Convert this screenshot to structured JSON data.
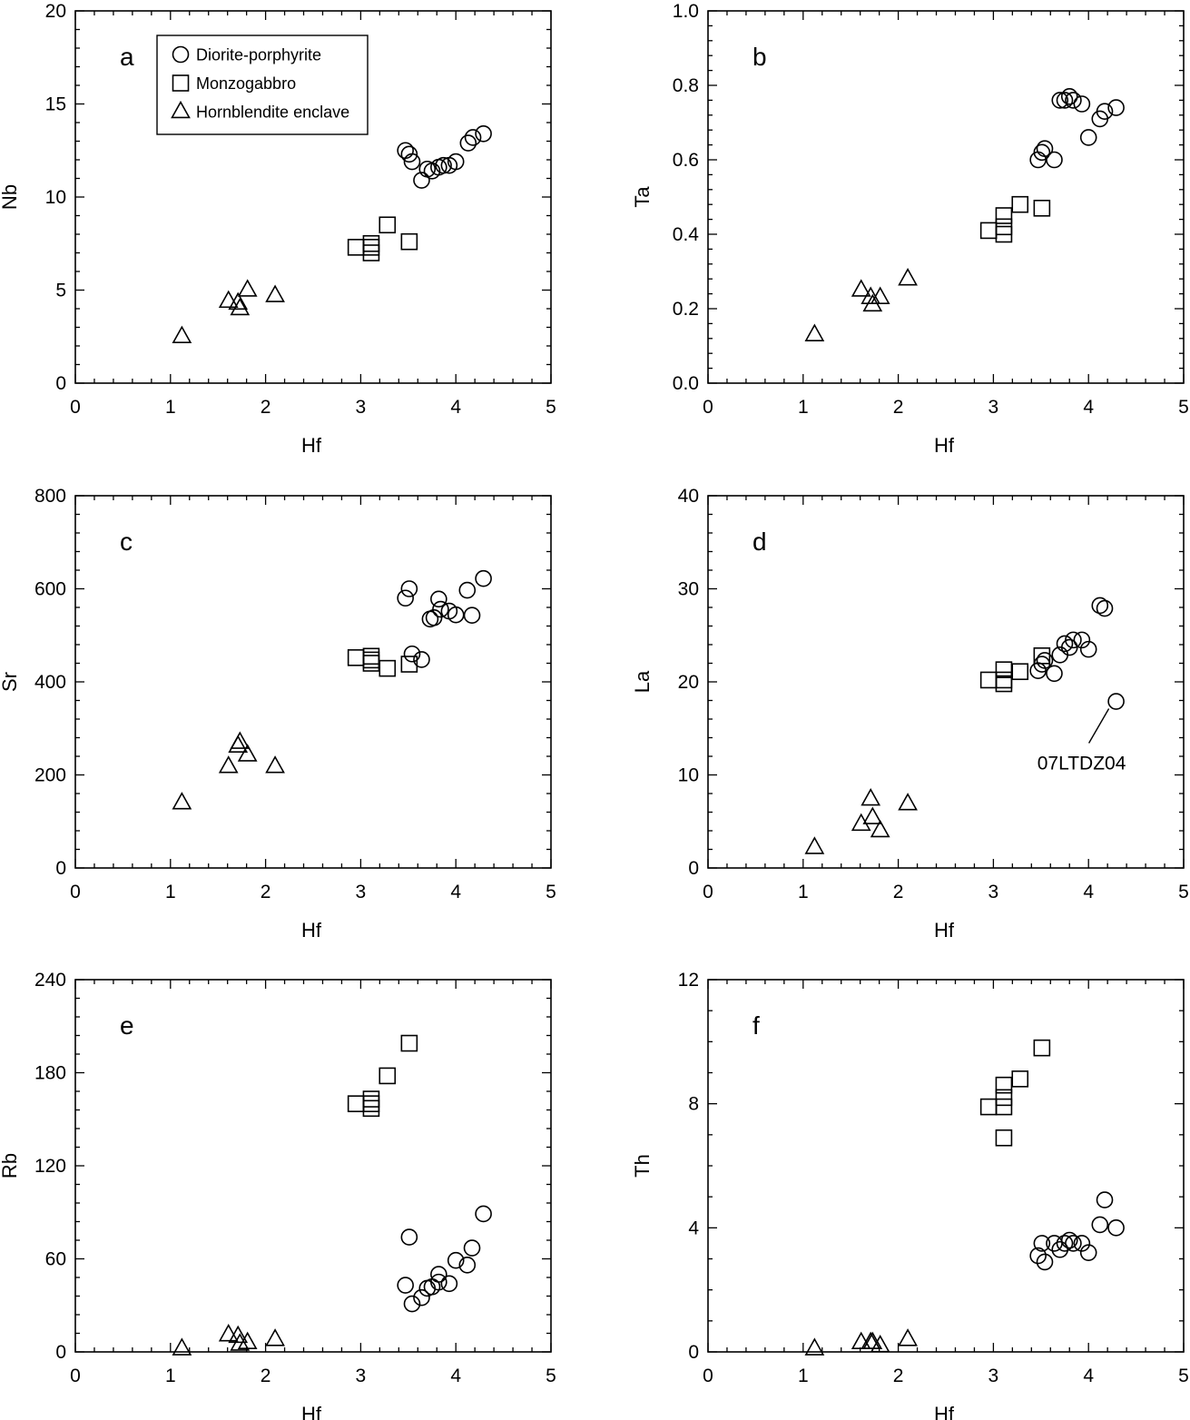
{
  "chart_data": [
    {
      "panel": "a",
      "type": "scatter",
      "xlabel": "Hf",
      "ylabel": "Nb",
      "xlim": [
        0,
        5
      ],
      "ylim": [
        0,
        20
      ],
      "xticks": [
        "0",
        "1",
        "2",
        "3",
        "4",
        "5"
      ],
      "yticks": [
        "0",
        "5",
        "10",
        "15",
        "20"
      ],
      "legend": {
        "placement": "top-left",
        "entries": [
          {
            "marker": "circle",
            "label": "Diorite-porphyrite"
          },
          {
            "marker": "square",
            "label": "Monzogabbro"
          },
          {
            "marker": "triangle",
            "label": "Hornblendite enclave"
          }
        ]
      },
      "series": [
        {
          "marker": "circle",
          "points": [
            [
              3.47,
              12.5
            ],
            [
              3.51,
              12.3
            ],
            [
              3.54,
              11.9
            ],
            [
              3.64,
              10.9
            ],
            [
              3.7,
              11.5
            ],
            [
              3.75,
              11.4
            ],
            [
              3.82,
              11.6
            ],
            [
              3.87,
              11.7
            ],
            [
              3.93,
              11.7
            ],
            [
              4.0,
              11.9
            ],
            [
              4.13,
              12.9
            ],
            [
              4.18,
              13.2
            ],
            [
              4.29,
              13.4
            ]
          ]
        },
        {
          "marker": "square",
          "points": [
            [
              2.95,
              7.3
            ],
            [
              3.11,
              7.5
            ],
            [
              3.11,
              7.3
            ],
            [
              3.11,
              7.0
            ],
            [
              3.28,
              8.5
            ],
            [
              3.51,
              7.6
            ]
          ]
        },
        {
          "marker": "triangle",
          "points": [
            [
              1.12,
              2.5
            ],
            [
              1.61,
              4.4
            ],
            [
              1.71,
              4.3
            ],
            [
              1.73,
              4.0
            ],
            [
              1.81,
              5.0
            ],
            [
              2.1,
              4.7
            ]
          ]
        }
      ]
    },
    {
      "panel": "b",
      "type": "scatter",
      "xlabel": "Hf",
      "ylabel": "Ta",
      "xlim": [
        0,
        5
      ],
      "ylim": [
        0,
        1
      ],
      "xticks": [
        "0",
        "1",
        "2",
        "3",
        "4",
        "5"
      ],
      "yticks": [
        "0.0",
        "0.2",
        "0.4",
        "0.6",
        "0.8",
        "1.0"
      ],
      "series": [
        {
          "marker": "circle",
          "points": [
            [
              3.47,
              0.6
            ],
            [
              3.51,
              0.62
            ],
            [
              3.54,
              0.63
            ],
            [
              3.64,
              0.6
            ],
            [
              3.7,
              0.76
            ],
            [
              3.75,
              0.76
            ],
            [
              3.8,
              0.77
            ],
            [
              3.84,
              0.76
            ],
            [
              3.93,
              0.75
            ],
            [
              4.0,
              0.66
            ],
            [
              4.12,
              0.71
            ],
            [
              4.17,
              0.73
            ],
            [
              4.29,
              0.74
            ]
          ]
        },
        {
          "marker": "square",
          "points": [
            [
              2.95,
              0.41
            ],
            [
              3.11,
              0.4
            ],
            [
              3.11,
              0.42
            ],
            [
              3.11,
              0.45
            ],
            [
              3.28,
              0.48
            ],
            [
              3.51,
              0.47
            ]
          ]
        },
        {
          "marker": "triangle",
          "points": [
            [
              1.12,
              0.13
            ],
            [
              1.61,
              0.25
            ],
            [
              1.71,
              0.23
            ],
            [
              1.73,
              0.21
            ],
            [
              1.81,
              0.23
            ],
            [
              2.1,
              0.28
            ]
          ]
        }
      ]
    },
    {
      "panel": "c",
      "type": "scatter",
      "xlabel": "Hf",
      "ylabel": "Sr",
      "xlim": [
        0,
        5
      ],
      "ylim": [
        0,
        800
      ],
      "xticks": [
        "0",
        "1",
        "2",
        "3",
        "4",
        "5"
      ],
      "yticks": [
        "0",
        "200",
        "400",
        "600",
        "800"
      ],
      "series": [
        {
          "marker": "circle",
          "points": [
            [
              3.47,
              580
            ],
            [
              3.51,
              600
            ],
            [
              3.54,
              460
            ],
            [
              3.64,
              448
            ],
            [
              3.73,
              535
            ],
            [
              3.77,
              538
            ],
            [
              3.82,
              578
            ],
            [
              3.84,
              556
            ],
            [
              3.93,
              552
            ],
            [
              4.0,
              544
            ],
            [
              4.12,
              597
            ],
            [
              4.17,
              543
            ],
            [
              4.29,
              622
            ]
          ]
        },
        {
          "marker": "square",
          "points": [
            [
              2.95,
              452
            ],
            [
              3.11,
              455
            ],
            [
              3.11,
              447
            ],
            [
              3.11,
              440
            ],
            [
              3.28,
              429
            ],
            [
              3.51,
              438
            ]
          ]
        },
        {
          "marker": "triangle",
          "points": [
            [
              1.12,
              140
            ],
            [
              1.61,
              218
            ],
            [
              1.71,
              262
            ],
            [
              1.73,
              270
            ],
            [
              1.81,
              243
            ],
            [
              2.1,
              218
            ]
          ]
        }
      ]
    },
    {
      "panel": "d",
      "type": "scatter",
      "xlabel": "Hf",
      "ylabel": "La",
      "xlim": [
        0,
        5
      ],
      "ylim": [
        0,
        40
      ],
      "xticks": [
        "0",
        "1",
        "2",
        "3",
        "4",
        "5"
      ],
      "yticks": [
        "0",
        "10",
        "20",
        "30",
        "40"
      ],
      "annotation": {
        "text": "07LTDZ04",
        "x": 4.29,
        "y": 17.9
      },
      "series": [
        {
          "marker": "circle",
          "points": [
            [
              3.47,
              21.2
            ],
            [
              3.51,
              21.9
            ],
            [
              3.54,
              22.3
            ],
            [
              3.64,
              20.9
            ],
            [
              3.7,
              22.9
            ],
            [
              3.75,
              24.1
            ],
            [
              3.8,
              23.7
            ],
            [
              3.84,
              24.5
            ],
            [
              3.93,
              24.5
            ],
            [
              4.0,
              23.5
            ],
            [
              4.12,
              28.2
            ],
            [
              4.17,
              27.9
            ],
            [
              4.29,
              17.9
            ]
          ]
        },
        {
          "marker": "square",
          "points": [
            [
              2.95,
              20.2
            ],
            [
              3.11,
              19.8
            ],
            [
              3.11,
              20.2
            ],
            [
              3.11,
              21.3
            ],
            [
              3.28,
              21.1
            ],
            [
              3.51,
              22.8
            ]
          ]
        },
        {
          "marker": "triangle",
          "points": [
            [
              1.12,
              2.2
            ],
            [
              1.61,
              4.7
            ],
            [
              1.71,
              7.4
            ],
            [
              1.73,
              5.4
            ],
            [
              1.81,
              4.0
            ],
            [
              2.1,
              6.9
            ]
          ]
        }
      ]
    },
    {
      "panel": "e",
      "type": "scatter",
      "xlabel": "Hf",
      "ylabel": "Rb",
      "xlim": [
        0,
        5
      ],
      "ylim": [
        0,
        240
      ],
      "xticks": [
        "0",
        "1",
        "2",
        "3",
        "4",
        "5"
      ],
      "yticks": [
        "0",
        "60",
        "120",
        "180",
        "240"
      ],
      "series": [
        {
          "marker": "circle",
          "points": [
            [
              3.47,
              43
            ],
            [
              3.51,
              74
            ],
            [
              3.54,
              31
            ],
            [
              3.64,
              35
            ],
            [
              3.7,
              41
            ],
            [
              3.75,
              42
            ],
            [
              3.82,
              45
            ],
            [
              3.82,
              50
            ],
            [
              3.93,
              44
            ],
            [
              4.0,
              59
            ],
            [
              4.12,
              56
            ],
            [
              4.17,
              67
            ],
            [
              4.29,
              89
            ]
          ]
        },
        {
          "marker": "square",
          "points": [
            [
              2.95,
              160
            ],
            [
              3.11,
              160
            ],
            [
              3.11,
              157
            ],
            [
              3.11,
              163
            ],
            [
              3.28,
              178
            ],
            [
              3.51,
              199
            ]
          ]
        },
        {
          "marker": "triangle",
          "points": [
            [
              1.12,
              2
            ],
            [
              1.61,
              11
            ],
            [
              1.71,
              10
            ],
            [
              1.73,
              5
            ],
            [
              1.81,
              6
            ],
            [
              2.1,
              8
            ]
          ]
        }
      ]
    },
    {
      "panel": "f",
      "type": "scatter",
      "xlabel": "Hf",
      "ylabel": "Th",
      "xlim": [
        0,
        5
      ],
      "ylim": [
        0,
        12
      ],
      "xticks": [
        "0",
        "1",
        "2",
        "3",
        "4",
        "5"
      ],
      "yticks": [
        "0",
        "4",
        "8",
        "12"
      ],
      "series": [
        {
          "marker": "circle",
          "points": [
            [
              3.47,
              3.1
            ],
            [
              3.51,
              3.5
            ],
            [
              3.54,
              2.9
            ],
            [
              3.64,
              3.5
            ],
            [
              3.7,
              3.3
            ],
            [
              3.75,
              3.5
            ],
            [
              3.8,
              3.6
            ],
            [
              3.84,
              3.5
            ],
            [
              3.93,
              3.5
            ],
            [
              4.0,
              3.2
            ],
            [
              4.12,
              4.1
            ],
            [
              4.17,
              4.9
            ],
            [
              4.29,
              4.0
            ]
          ]
        },
        {
          "marker": "square",
          "points": [
            [
              2.95,
              7.9
            ],
            [
              3.11,
              6.9
            ],
            [
              3.11,
              7.9
            ],
            [
              3.11,
              8.2
            ],
            [
              3.11,
              8.6
            ],
            [
              3.28,
              8.8
            ],
            [
              3.51,
              9.8
            ]
          ]
        },
        {
          "marker": "triangle",
          "points": [
            [
              1.12,
              0.1
            ],
            [
              1.61,
              0.3
            ],
            [
              1.71,
              0.3
            ],
            [
              1.73,
              0.3
            ],
            [
              1.81,
              0.2
            ],
            [
              2.1,
              0.4
            ]
          ]
        }
      ]
    }
  ]
}
